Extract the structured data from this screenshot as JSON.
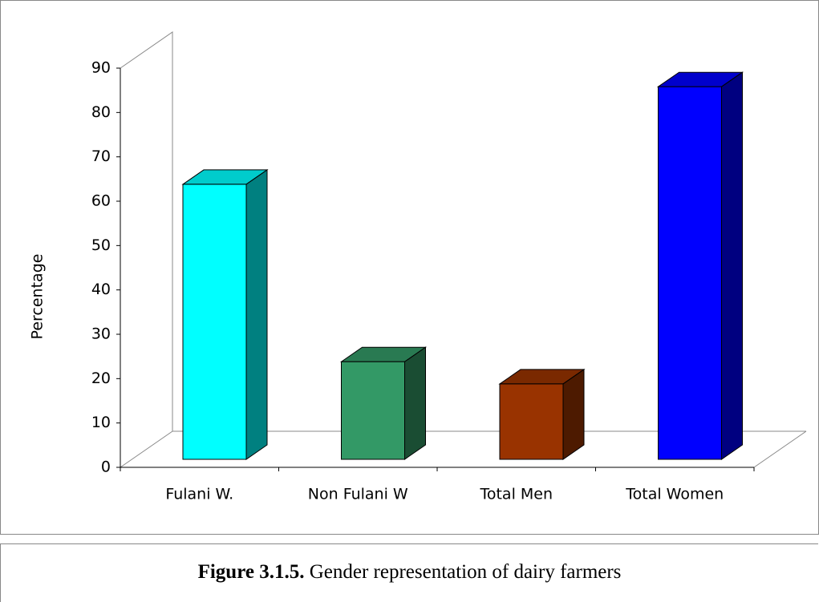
{
  "chart_data": {
    "type": "bar3d",
    "y_label": "Percentage",
    "categories": [
      "Fulani W.",
      "Non Fulani W",
      "Total Men",
      "Total Women"
    ],
    "values": [
      62,
      22,
      17,
      84
    ],
    "colors": [
      "#00ffff",
      "#339966",
      "#993300",
      "#0000ff"
    ],
    "ylim": [
      0,
      90
    ],
    "yticks": [
      0,
      10,
      20,
      30,
      40,
      50,
      60,
      70,
      80,
      90
    ]
  },
  "caption": {
    "label": "Figure 3.1.5.",
    "text": "Gender representation of dairy farmers"
  }
}
